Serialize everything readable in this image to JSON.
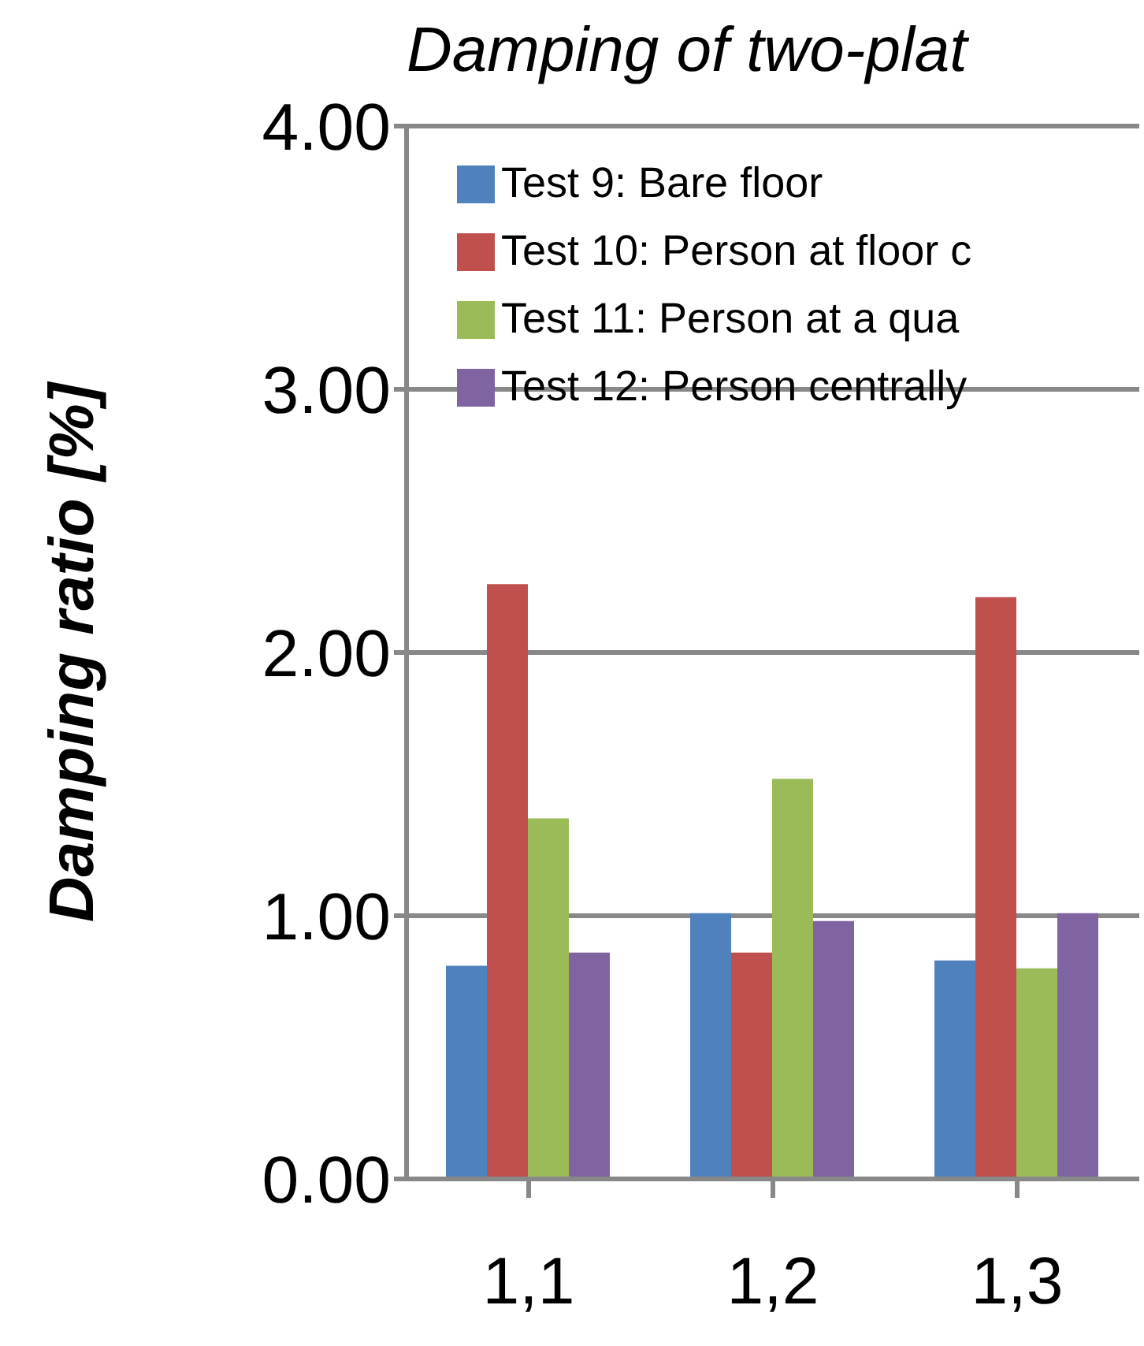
{
  "chart_data": {
    "type": "bar",
    "title": "Damping of two-plat",
    "ylabel": "Damping ratio   [%]",
    "categories": [
      "1,1",
      "1,2",
      "1,3"
    ],
    "series": [
      {
        "name": "Test 9: Bare floor",
        "color": "#4f81bd",
        "values": [
          0.81,
          1.01,
          0.83
        ]
      },
      {
        "name": "Test 10: Person at floor c",
        "color": "#c0504d",
        "values": [
          2.26,
          0.86,
          2.21
        ]
      },
      {
        "name": "Test 11: Person at a qua",
        "color": "#9bbb59",
        "values": [
          1.37,
          1.52,
          0.8
        ]
      },
      {
        "name": "Test 12: Person centrally",
        "color": "#8064a2",
        "values": [
          0.86,
          0.98,
          1.01
        ]
      }
    ],
    "ylim": [
      0,
      4
    ],
    "yticks": [
      {
        "value": 0,
        "label": "0.00"
      },
      {
        "value": 1,
        "label": "1.00"
      },
      {
        "value": 2,
        "label": "2.00"
      },
      {
        "value": 3,
        "label": "3.00"
      },
      {
        "value": 4,
        "label": "4.00"
      }
    ],
    "grid": "y",
    "legend": "top left"
  }
}
